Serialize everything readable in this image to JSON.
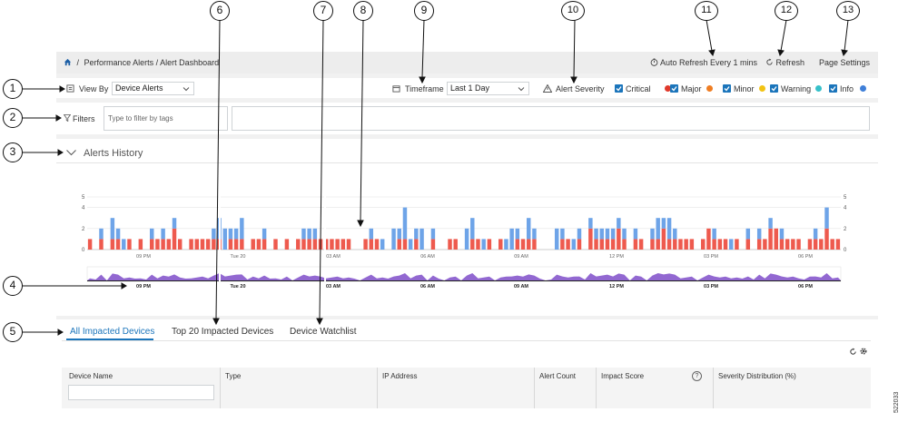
{
  "callouts": [
    "1",
    "2",
    "3",
    "4",
    "5",
    "6",
    "7",
    "8",
    "9",
    "10",
    "11",
    "12",
    "13"
  ],
  "breadcrumb": {
    "home_icon": "home-icon",
    "sep": "/",
    "path": "Performance Alerts / Alert Dashboard"
  },
  "topbar": {
    "auto_refresh": "Auto Refresh Every 1 mins",
    "refresh": "Refresh",
    "page_settings": "Page Settings"
  },
  "view_by": {
    "label": "View By",
    "value": "Device Alerts"
  },
  "timeframe": {
    "label": "Timeframe",
    "value": "Last 1 Day"
  },
  "alert_severity": {
    "label": "Alert Severity",
    "items": [
      {
        "label": "Critical",
        "color": "#e0392b"
      },
      {
        "label": "Major",
        "color": "#ef7d22"
      },
      {
        "label": "Minor",
        "color": "#f2c313"
      },
      {
        "label": "Warning",
        "color": "#36c0c9"
      },
      {
        "label": "Info",
        "color": "#3f7fd8"
      }
    ]
  },
  "filters": {
    "label": "Filters",
    "placeholder": "Type to filter by tags"
  },
  "alerts_history": {
    "title": "Alerts History"
  },
  "chart_data": {
    "type": "bar",
    "stacked": true,
    "ylim": [
      0,
      5
    ],
    "yticks": [
      "5",
      "4",
      "2",
      "0"
    ],
    "xticks_top": [
      "09 PM",
      "Tue 20",
      "03 AM",
      "06 AM",
      "09 AM",
      "12 PM",
      "03 PM",
      "06 PM"
    ],
    "xticks_bottom": [
      "09 PM",
      "Tue 20",
      "03 AM",
      "06 AM",
      "09 AM",
      "12 PM",
      "03 PM",
      "06 PM"
    ],
    "colors": {
      "red": "#ee5a4e",
      "blue": "#6ea4e8",
      "purple": "#7f4ec9"
    },
    "bars": [
      [
        1,
        0
      ],
      [
        0,
        0
      ],
      [
        1,
        1
      ],
      [
        0,
        0
      ],
      [
        1,
        2
      ],
      [
        1,
        1
      ],
      [
        0,
        1
      ],
      [
        1,
        0
      ],
      [
        0,
        0
      ],
      [
        1,
        0
      ],
      [
        0,
        0
      ],
      [
        1,
        1
      ],
      [
        1,
        0
      ],
      [
        1,
        1
      ],
      [
        1,
        0
      ],
      [
        2,
        1
      ],
      [
        1,
        0
      ],
      [
        0,
        0
      ],
      [
        1,
        0
      ],
      [
        1,
        0
      ],
      [
        1,
        0
      ],
      [
        1,
        0
      ],
      [
        1,
        1
      ],
      [
        1,
        2
      ],
      [
        0,
        2
      ],
      [
        1,
        1
      ],
      [
        1,
        1
      ],
      [
        1,
        2
      ],
      [
        0,
        0
      ],
      [
        1,
        0
      ],
      [
        1,
        0
      ],
      [
        1,
        1
      ],
      [
        0,
        0
      ],
      [
        1,
        0
      ],
      [
        0,
        0
      ],
      [
        1,
        0
      ],
      [
        0,
        0
      ],
      [
        1,
        0
      ],
      [
        1,
        1
      ],
      [
        1,
        1
      ],
      [
        1,
        1
      ],
      [
        1,
        0
      ],
      [
        1,
        0
      ],
      [
        1,
        0
      ],
      [
        1,
        0
      ],
      [
        1,
        0
      ],
      [
        1,
        0
      ],
      [
        0,
        0
      ],
      [
        0,
        0
      ],
      [
        1,
        0
      ],
      [
        1,
        1
      ],
      [
        1,
        0
      ],
      [
        0,
        1
      ],
      [
        0,
        0
      ],
      [
        0,
        2
      ],
      [
        1,
        1
      ],
      [
        1,
        3
      ],
      [
        0,
        1
      ],
      [
        1,
        1
      ],
      [
        0,
        2
      ],
      [
        0,
        0
      ],
      [
        1,
        1
      ],
      [
        0,
        0
      ],
      [
        0,
        0
      ],
      [
        1,
        0
      ],
      [
        1,
        0
      ],
      [
        0,
        0
      ],
      [
        0,
        2
      ],
      [
        1,
        2
      ],
      [
        1,
        0
      ],
      [
        0,
        1
      ],
      [
        1,
        0
      ],
      [
        0,
        0
      ],
      [
        1,
        0
      ],
      [
        0,
        1
      ],
      [
        0,
        2
      ],
      [
        1,
        1
      ],
      [
        1,
        0
      ],
      [
        1,
        2
      ],
      [
        1,
        1
      ],
      [
        0,
        0
      ],
      [
        0,
        0
      ],
      [
        0,
        0
      ],
      [
        0,
        2
      ],
      [
        1,
        1
      ],
      [
        1,
        0
      ],
      [
        0,
        1
      ],
      [
        1,
        1
      ],
      [
        0,
        0
      ],
      [
        2,
        1
      ],
      [
        1,
        1
      ],
      [
        1,
        1
      ],
      [
        1,
        1
      ],
      [
        1,
        1
      ],
      [
        2,
        1
      ],
      [
        1,
        1
      ],
      [
        0,
        0
      ],
      [
        1,
        1
      ],
      [
        1,
        0
      ],
      [
        0,
        0
      ],
      [
        1,
        1
      ],
      [
        1,
        2
      ],
      [
        2,
        1
      ],
      [
        1,
        2
      ],
      [
        1,
        1
      ],
      [
        1,
        0
      ],
      [
        1,
        0
      ],
      [
        1,
        0
      ],
      [
        0,
        0
      ],
      [
        1,
        0
      ],
      [
        2,
        0
      ],
      [
        1,
        1
      ],
      [
        1,
        0
      ],
      [
        1,
        0
      ],
      [
        0,
        1
      ],
      [
        1,
        0
      ],
      [
        0,
        0
      ],
      [
        1,
        1
      ],
      [
        0,
        0
      ],
      [
        1,
        1
      ],
      [
        1,
        0
      ],
      [
        2,
        1
      ],
      [
        2,
        0
      ],
      [
        1,
        1
      ],
      [
        1,
        0
      ],
      [
        1,
        0
      ],
      [
        1,
        0
      ],
      [
        0,
        0
      ],
      [
        1,
        0
      ],
      [
        1,
        1
      ],
      [
        1,
        0
      ],
      [
        2,
        2
      ],
      [
        1,
        0
      ],
      [
        1,
        0
      ]
    ]
  },
  "tabs": [
    "All Impacted Devices",
    "Top 20 Impacted Devices",
    "Device Watchlist"
  ],
  "table": {
    "columns": [
      "Device Name",
      "Type",
      "IP Address",
      "Alert Count",
      "Impact Score",
      "Severity Distribution (%)"
    ],
    "help_icon": "?"
  },
  "figure_id": "522033"
}
